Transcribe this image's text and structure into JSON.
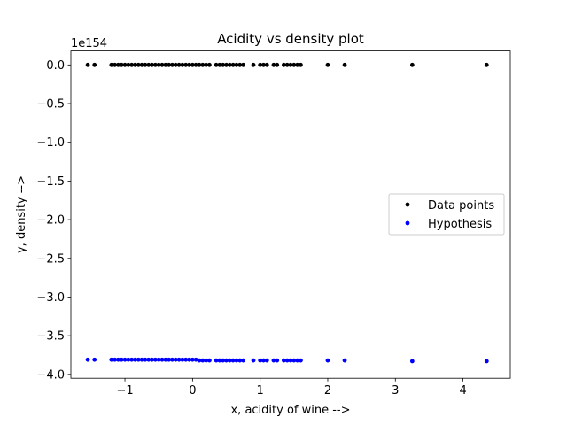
{
  "chart_data": {
    "type": "scatter",
    "title": "Acidity vs density plot",
    "xlabel": "x, acidity of wine -->",
    "ylabel": "y, density -->",
    "y_offset_label": "1e154",
    "xlim": [
      -1.8,
      4.7
    ],
    "ylim": [
      -4.05,
      0.18
    ],
    "x_ticks": [
      -1,
      0,
      1,
      2,
      3,
      4
    ],
    "x_tick_labels": [
      "−1",
      "0",
      "1",
      "2",
      "3",
      "4"
    ],
    "y_ticks": [
      0.0,
      -0.5,
      -1.0,
      -1.5,
      -2.0,
      -2.5,
      -3.0,
      -3.5,
      -4.0
    ],
    "y_tick_labels": [
      "0.0",
      "−0.5",
      "−1.0",
      "−1.5",
      "−2.0",
      "−2.5",
      "−3.0",
      "−3.5",
      "−4.0"
    ],
    "grid": false,
    "legend_position": "center-right",
    "x": [
      -1.55,
      -1.45,
      -1.2,
      -1.15,
      -1.1,
      -1.05,
      -1.0,
      -0.95,
      -0.9,
      -0.85,
      -0.8,
      -0.75,
      -0.7,
      -0.65,
      -0.6,
      -0.55,
      -0.5,
      -0.45,
      -0.4,
      -0.35,
      -0.3,
      -0.25,
      -0.2,
      -0.15,
      -0.1,
      -0.05,
      0.0,
      0.05,
      0.1,
      0.15,
      0.2,
      0.25,
      0.35,
      0.4,
      0.45,
      0.5,
      0.55,
      0.6,
      0.65,
      0.7,
      0.75,
      0.9,
      1.0,
      1.05,
      1.1,
      1.2,
      1.25,
      1.35,
      1.4,
      1.45,
      1.5,
      1.55,
      1.6,
      2.0,
      2.25,
      3.25,
      4.35
    ],
    "series": [
      {
        "name": "Data points",
        "color": "#000000",
        "values": [
          0,
          0,
          0,
          0,
          0,
          0,
          0,
          0,
          0,
          0,
          0,
          0,
          0,
          0,
          0,
          0,
          0,
          0,
          0,
          0,
          0,
          0,
          0,
          0,
          0,
          0,
          0,
          0,
          0,
          0,
          0,
          0,
          0,
          0,
          0,
          0,
          0,
          0,
          0,
          0,
          0,
          0,
          0,
          0,
          0,
          0,
          0,
          0,
          0,
          0,
          0,
          0,
          0,
          0,
          0,
          0,
          0
        ]
      },
      {
        "name": "Hypothesis",
        "color": "#0000ff",
        "values": [
          -3.81,
          -3.81,
          -3.81,
          -3.81,
          -3.81,
          -3.81,
          -3.81,
          -3.81,
          -3.81,
          -3.81,
          -3.81,
          -3.81,
          -3.81,
          -3.81,
          -3.81,
          -3.81,
          -3.81,
          -3.81,
          -3.81,
          -3.81,
          -3.81,
          -3.81,
          -3.81,
          -3.81,
          -3.81,
          -3.81,
          -3.81,
          -3.81,
          -3.82,
          -3.82,
          -3.82,
          -3.82,
          -3.82,
          -3.82,
          -3.82,
          -3.82,
          -3.82,
          -3.82,
          -3.82,
          -3.82,
          -3.82,
          -3.82,
          -3.82,
          -3.82,
          -3.82,
          -3.82,
          -3.82,
          -3.82,
          -3.82,
          -3.82,
          -3.82,
          -3.82,
          -3.82,
          -3.82,
          -3.82,
          -3.83,
          -3.83
        ]
      }
    ]
  }
}
